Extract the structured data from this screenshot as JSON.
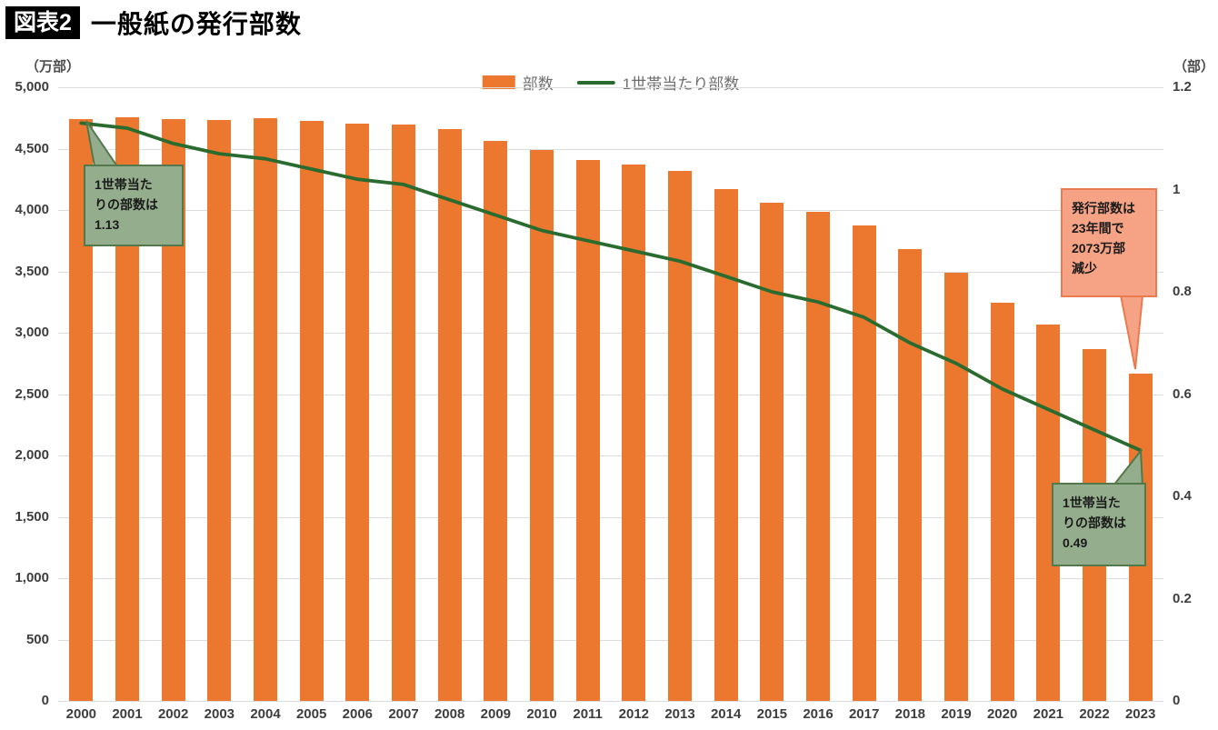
{
  "title": {
    "badge": "図表2",
    "text": "一般紙の発行部数"
  },
  "axes": {
    "left_unit": "（万部）",
    "right_unit": "（部）",
    "left_ticks": [
      {
        "label": "5,000",
        "value": 5000
      },
      {
        "label": "4,500",
        "value": 4500
      },
      {
        "label": "4,000",
        "value": 4000
      },
      {
        "label": "3,500",
        "value": 3500
      },
      {
        "label": "3,000",
        "value": 3000
      },
      {
        "label": "2,500",
        "value": 2500
      },
      {
        "label": "2,000",
        "value": 2000
      },
      {
        "label": "1,500",
        "value": 1500
      },
      {
        "label": "1,000",
        "value": 1000
      },
      {
        "label": "500",
        "value": 500
      },
      {
        "label": "0",
        "value": 0
      }
    ],
    "right_ticks": [
      {
        "label": "1.2",
        "value": 1.2
      },
      {
        "label": "1",
        "value": 1.0
      },
      {
        "label": "0.8",
        "value": 0.8
      },
      {
        "label": "0.6",
        "value": 0.6
      },
      {
        "label": "0.4",
        "value": 0.4
      },
      {
        "label": "0.2",
        "value": 0.2
      },
      {
        "label": "0",
        "value": 0
      }
    ],
    "x_labels": [
      "2000",
      "2001",
      "2002",
      "2003",
      "2004",
      "2005",
      "2006",
      "2007",
      "2008",
      "2009",
      "2010",
      "2011",
      "2012",
      "2013",
      "2014",
      "2015",
      "2016",
      "2017",
      "2018",
      "2019",
      "2020",
      "2021",
      "2022",
      "2023"
    ]
  },
  "legend": [
    {
      "label": "部数",
      "type": "bar",
      "color": "#ec772f"
    },
    {
      "label": "1世帯当たり部数",
      "type": "line",
      "color": "#2a6c2f"
    }
  ],
  "chart_data": {
    "type": "bar+line",
    "categories": [
      2000,
      2001,
      2002,
      2003,
      2004,
      2005,
      2006,
      2007,
      2008,
      2009,
      2010,
      2011,
      2012,
      2013,
      2014,
      2015,
      2016,
      2017,
      2018,
      2019,
      2020,
      2021,
      2022,
      2023
    ],
    "series": [
      {
        "name": "部数",
        "type": "bar",
        "axis": "left",
        "color": "#ec772f",
        "values": [
          4740,
          4755,
          4739,
          4733,
          4747,
          4724,
          4706,
          4700,
          4656,
          4566,
          4491,
          4410,
          4372,
          4317,
          4169,
          4063,
          3982,
          3876,
          3682,
          3487,
          3245,
          3065,
          2869,
          2667
        ]
      },
      {
        "name": "1世帯当たり部数",
        "type": "line",
        "axis": "right",
        "color": "#2a6c2f",
        "values": [
          1.13,
          1.12,
          1.09,
          1.07,
          1.06,
          1.04,
          1.02,
          1.01,
          0.98,
          0.95,
          0.92,
          0.9,
          0.88,
          0.86,
          0.83,
          0.8,
          0.78,
          0.75,
          0.7,
          0.66,
          0.61,
          0.57,
          0.53,
          0.49
        ]
      }
    ],
    "ylim_left": [
      0,
      5000
    ],
    "ylim_right": [
      0,
      1.2
    ],
    "grid": "horizontal",
    "legend_position": "top-center",
    "title": "一般紙の発行部数"
  },
  "annotations": {
    "start_household": {
      "text": "1世帯当た\nりの部数は\n1.13"
    },
    "decline": {
      "text": "発行部数は\n23年間で\n2073万部\n減少"
    },
    "end_household": {
      "text": "1世帯当た\nりの部数は\n0.49"
    }
  },
  "colors": {
    "bar": "#ec772f",
    "line": "#2a6c2f",
    "callout_green_bg": "#94ad8c",
    "callout_green_border": "#53784b",
    "callout_salmon_bg": "#f5a285",
    "callout_salmon_border": "#ea7a4f",
    "gridline": "#dcdcdc"
  }
}
